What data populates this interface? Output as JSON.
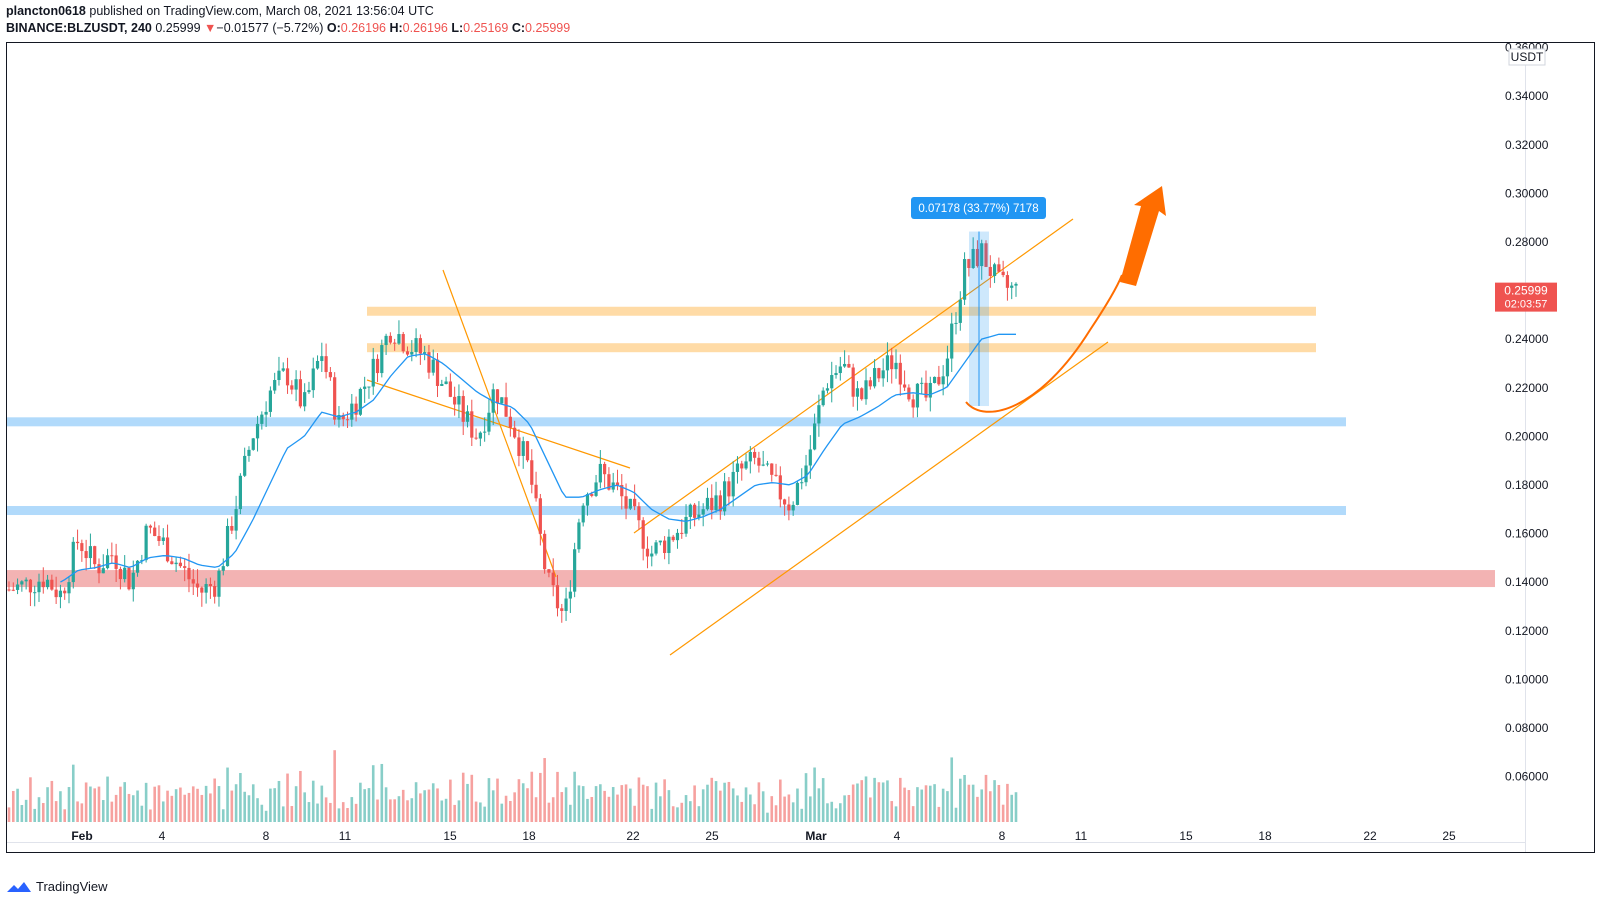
{
  "header": {
    "line1_user": "plancton0618",
    "line1_rest": " published on TradingView.com, March 08, 2021 13:56:04 UTC",
    "symbol": "BINANCE:BLZUSDT, 240",
    "last": "0.25999",
    "arrow": "▼",
    "change": "−0.01577 (−5.72%)",
    "o_label": "O:",
    "o": "0.26196",
    "h_label": "H:",
    "h": "0.26196",
    "l_label": "L:",
    "l": "0.25169",
    "c_label": "C:",
    "c": "0.25999"
  },
  "footer": {
    "brand": "TradingView",
    "logo_icon": "tradingview-logo-icon"
  },
  "colors": {
    "up": "#26a69a",
    "down": "#ef5350",
    "ma": "#2196f3",
    "orange": "#ff9800",
    "zone_orange": "#ffcc80",
    "zone_blue": "#90caf9",
    "zone_red": "#ef9a9a",
    "arrow": "#ff6d00",
    "measure": "#2196f3"
  },
  "chart_data": {
    "type": "candlestick",
    "title": "BINANCE:BLZUSDT, 240",
    "price_unit": "USDT",
    "ylim": [
      0.04,
      0.36
    ],
    "y_ticks": [
      "0.36000",
      "0.34000",
      "0.32000",
      "0.30000",
      "0.28000",
      "0.24000",
      "0.22000",
      "0.20000",
      "0.18000",
      "0.16000",
      "0.14000",
      "0.12000",
      "0.10000",
      "0.08000",
      "0.06000"
    ],
    "x_ticks": [
      "Feb",
      "4",
      "8",
      "11",
      "15",
      "18",
      "22",
      "25",
      "Mar",
      "4",
      "8",
      "11",
      "15",
      "18",
      "22",
      "25"
    ],
    "bar_interval": "240",
    "price_tag": {
      "value": "0.25999",
      "countdown": "02:03:57"
    },
    "measure_label": "0.07178 (33.77%) 7178",
    "measure_range": [
      0.2125,
      0.2843
    ],
    "zones": [
      {
        "color": "orange",
        "price": 0.2515
      },
      {
        "color": "orange",
        "price": 0.2365
      },
      {
        "color": "blue",
        "price": 0.206
      },
      {
        "color": "blue",
        "price": 0.1695
      },
      {
        "color": "red",
        "price": 0.1415
      }
    ],
    "price_path": [
      0.137,
      0.139,
      0.142,
      0.135,
      0.158,
      0.146,
      0.152,
      0.14,
      0.162,
      0.155,
      0.145,
      0.136,
      0.14,
      0.17,
      0.2,
      0.218,
      0.226,
      0.212,
      0.235,
      0.205,
      0.215,
      0.228,
      0.245,
      0.238,
      0.233,
      0.222,
      0.21,
      0.2,
      0.22,
      0.205,
      0.185,
      0.14,
      0.125,
      0.175,
      0.185,
      0.178,
      0.166,
      0.152,
      0.158,
      0.165,
      0.17,
      0.175,
      0.185,
      0.19,
      0.18,
      0.172,
      0.19,
      0.222,
      0.23,
      0.215,
      0.225,
      0.232,
      0.218,
      0.215,
      0.232,
      0.268,
      0.276,
      0.262,
      0.26
    ],
    "ma_path": [
      0.137,
      0.138,
      0.141,
      0.14,
      0.145,
      0.146,
      0.148,
      0.146,
      0.15,
      0.151,
      0.15,
      0.147,
      0.146,
      0.152,
      0.165,
      0.18,
      0.195,
      0.2,
      0.21,
      0.208,
      0.21,
      0.215,
      0.225,
      0.233,
      0.234,
      0.23,
      0.224,
      0.218,
      0.214,
      0.212,
      0.205,
      0.19,
      0.175,
      0.175,
      0.178,
      0.18,
      0.177,
      0.17,
      0.166,
      0.165,
      0.167,
      0.17,
      0.175,
      0.18,
      0.181,
      0.18,
      0.184,
      0.195,
      0.205,
      0.208,
      0.212,
      0.217,
      0.218,
      0.217,
      0.22,
      0.23,
      0.24,
      0.242,
      0.242
    ]
  }
}
